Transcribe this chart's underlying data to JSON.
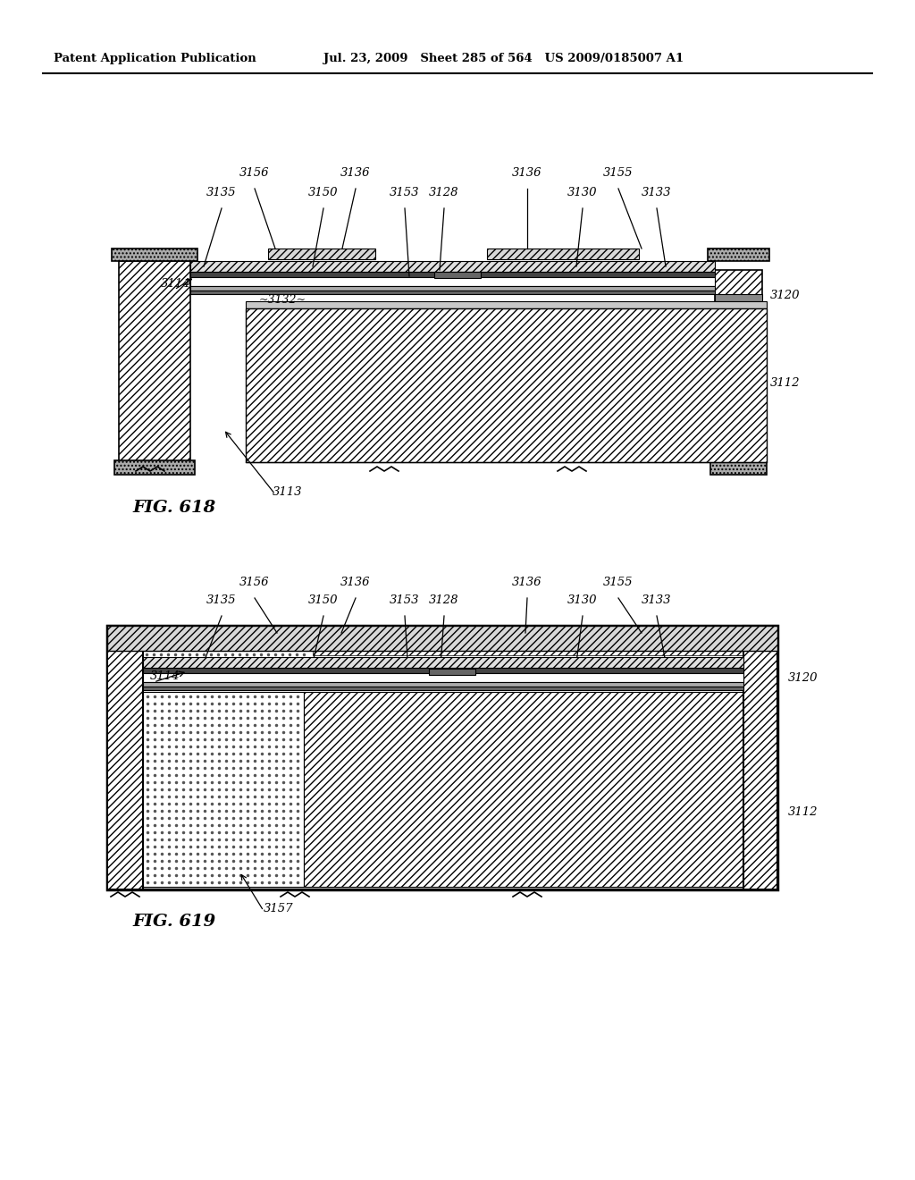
{
  "header_left": "Patent Application Publication",
  "header_mid": "Jul. 23, 2009   Sheet 285 of 564   US 2009/0185007 A1",
  "fig618_label": "FIG. 618",
  "fig619_label": "FIG. 619",
  "bg_color": "#ffffff"
}
